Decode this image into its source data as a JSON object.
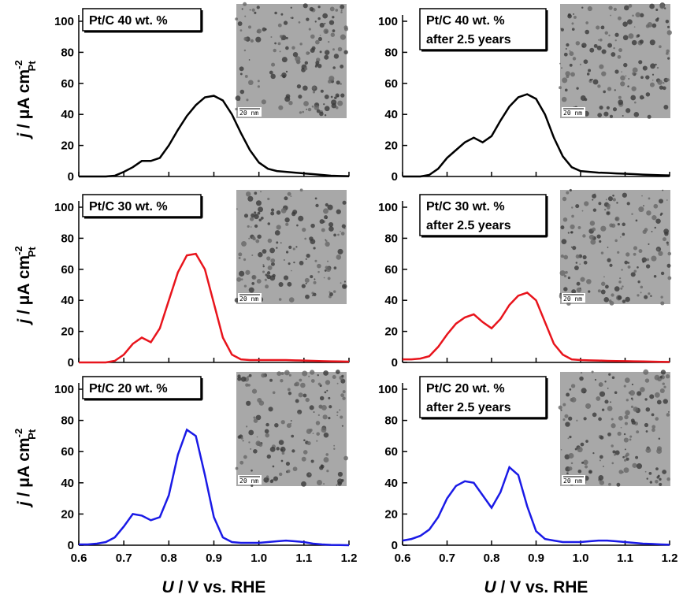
{
  "chart_data": [
    {
      "type": "line",
      "title": [
        "Pt/C 40 wt. %"
      ],
      "inset_scale": "20 nm",
      "ylabel": {
        "symbol": "j",
        "unit": " / μA cm",
        "sup": "-2",
        "sub": "Pt"
      },
      "x": [
        0.6,
        0.62,
        0.64,
        0.66,
        0.68,
        0.7,
        0.72,
        0.74,
        0.76,
        0.78,
        0.8,
        0.82,
        0.84,
        0.86,
        0.88,
        0.9,
        0.92,
        0.94,
        0.96,
        0.98,
        1.0,
        1.02,
        1.04,
        1.06,
        1.08,
        1.1,
        1.12,
        1.14,
        1.16,
        1.18,
        1.2
      ],
      "series": [
        {
          "color": "#000000",
          "values": [
            0,
            0,
            0,
            0,
            0.5,
            3,
            6,
            10,
            10,
            12,
            20,
            30,
            39,
            46,
            51,
            52,
            49,
            40,
            28,
            17,
            9,
            5,
            3.5,
            3,
            2.5,
            2,
            1.5,
            1,
            0.5,
            0.3,
            0.2
          ]
        }
      ],
      "xlim": [
        0.6,
        1.2
      ],
      "xticks": [
        0.6,
        0.7,
        0.8,
        0.9,
        {
          "value": 1,
          "label": "1.0"
        },
        1.1,
        1.2
      ],
      "show_xtick_labels": false,
      "ylim": [
        0,
        100
      ],
      "yticks": [
        0,
        20,
        40,
        60,
        80,
        100
      ]
    },
    {
      "type": "line",
      "title": [
        "Pt/C 40 wt. %",
        "after 2.5 years"
      ],
      "inset_scale": "20 nm",
      "x": [
        0.6,
        0.62,
        0.64,
        0.66,
        0.68,
        0.7,
        0.72,
        0.74,
        0.76,
        0.78,
        0.8,
        0.82,
        0.84,
        0.86,
        0.88,
        0.9,
        0.92,
        0.94,
        0.96,
        0.98,
        1.0,
        1.02,
        1.04,
        1.06,
        1.08,
        1.1,
        1.12,
        1.14,
        1.16,
        1.18,
        1.2
      ],
      "series": [
        {
          "color": "#000000",
          "values": [
            0,
            0,
            0,
            1,
            5,
            12,
            17,
            22,
            25,
            22,
            26,
            36,
            45,
            51,
            53,
            50,
            40,
            25,
            13,
            6,
            3.5,
            3,
            2.5,
            2.3,
            2,
            1.8,
            1.5,
            1.2,
            1,
            0.8,
            0.7
          ]
        }
      ],
      "xlim": [
        0.6,
        1.2
      ],
      "xticks": [
        0.6,
        0.7,
        0.8,
        0.9,
        {
          "value": 1,
          "label": "1.0"
        },
        1.1,
        1.2
      ],
      "show_xtick_labels": false,
      "ylim": [
        0,
        100
      ],
      "yticks": [
        0,
        20,
        40,
        60,
        80,
        100
      ]
    },
    {
      "type": "line",
      "title": [
        "Pt/C 30 wt. %"
      ],
      "inset_scale": "20 nm",
      "ylabel": {
        "symbol": "j",
        "unit": " / μA cm",
        "sup": "-2",
        "sub": "Pt"
      },
      "x": [
        0.6,
        0.62,
        0.64,
        0.66,
        0.68,
        0.7,
        0.72,
        0.74,
        0.76,
        0.78,
        0.8,
        0.82,
        0.84,
        0.86,
        0.88,
        0.9,
        0.92,
        0.94,
        0.96,
        0.98,
        1.0,
        1.02,
        1.04,
        1.06,
        1.08,
        1.1,
        1.12,
        1.14,
        1.16,
        1.18,
        1.2
      ],
      "series": [
        {
          "color": "#e8141c",
          "values": [
            0,
            0,
            0,
            0,
            1,
            5,
            12,
            16,
            13,
            22,
            40,
            58,
            69,
            70,
            60,
            38,
            16,
            5,
            2,
            1.5,
            1.5,
            1.5,
            1.5,
            1.5,
            1.3,
            1.2,
            1,
            0.8,
            0.7,
            0.6,
            0.5
          ]
        }
      ],
      "xlim": [
        0.6,
        1.2
      ],
      "xticks": [
        0.6,
        0.7,
        0.8,
        0.9,
        {
          "value": 1,
          "label": "1.0"
        },
        1.1,
        1.2
      ],
      "show_xtick_labels": false,
      "ylim": [
        0,
        100
      ],
      "yticks": [
        0,
        20,
        40,
        60,
        80,
        100
      ]
    },
    {
      "type": "line",
      "title": [
        "Pt/C 30 wt. %",
        "after 2.5 years"
      ],
      "inset_scale": "20 nm",
      "x": [
        0.6,
        0.62,
        0.64,
        0.66,
        0.68,
        0.7,
        0.72,
        0.74,
        0.76,
        0.78,
        0.8,
        0.82,
        0.84,
        0.86,
        0.88,
        0.9,
        0.92,
        0.94,
        0.96,
        0.98,
        1.0,
        1.02,
        1.04,
        1.06,
        1.08,
        1.1,
        1.12,
        1.14,
        1.16,
        1.18,
        1.2
      ],
      "series": [
        {
          "color": "#e8141c",
          "values": [
            2,
            2,
            2.5,
            4,
            10,
            18,
            25,
            29,
            31,
            26,
            22,
            28,
            37,
            43,
            45,
            40,
            26,
            12,
            5,
            2,
            1.5,
            1.3,
            1.2,
            1,
            0.9,
            0.8,
            0.7,
            0.6,
            0.5,
            0.4,
            0.3
          ]
        }
      ],
      "xlim": [
        0.6,
        1.2
      ],
      "xticks": [
        0.6,
        0.7,
        0.8,
        0.9,
        {
          "value": 1,
          "label": "1.0"
        },
        1.1,
        1.2
      ],
      "show_xtick_labels": false,
      "ylim": [
        0,
        100
      ],
      "yticks": [
        0,
        20,
        40,
        60,
        80,
        100
      ]
    },
    {
      "type": "line",
      "title": [
        "Pt/C 20 wt. %"
      ],
      "inset_scale": "20 nm",
      "ylabel": {
        "symbol": "j",
        "unit": " / μA cm",
        "sup": "-2",
        "sub": "Pt"
      },
      "xlabel": {
        "symbol": "U",
        "unit": " / V vs. RHE"
      },
      "x": [
        0.6,
        0.62,
        0.64,
        0.66,
        0.68,
        0.7,
        0.72,
        0.74,
        0.76,
        0.78,
        0.8,
        0.82,
        0.84,
        0.86,
        0.88,
        0.9,
        0.92,
        0.94,
        0.96,
        0.98,
        1.0,
        1.02,
        1.04,
        1.06,
        1.08,
        1.1,
        1.12,
        1.14,
        1.16,
        1.18,
        1.2
      ],
      "series": [
        {
          "color": "#1a1ae6",
          "values": [
            0.5,
            0.5,
            1,
            2,
            5,
            12,
            20,
            19,
            16,
            18,
            32,
            58,
            74,
            70,
            45,
            18,
            5,
            2,
            1.5,
            1.5,
            1.5,
            2,
            2.5,
            3,
            2.5,
            2,
            1,
            0.5,
            0.2,
            0.1,
            0
          ]
        }
      ],
      "xlim": [
        0.6,
        1.2
      ],
      "xticks": [
        0.6,
        0.7,
        0.8,
        0.9,
        {
          "value": 1,
          "label": "1.0"
        },
        1.1,
        1.2
      ],
      "show_xtick_labels": true,
      "ylim": [
        0,
        100
      ],
      "yticks": [
        0,
        20,
        40,
        60,
        80,
        100
      ]
    },
    {
      "type": "line",
      "title": [
        "Pt/C 20 wt. %",
        "after 2.5 years"
      ],
      "inset_scale": "20 nm",
      "xlabel": {
        "symbol": "U",
        "unit": " / V vs. RHE"
      },
      "x": [
        0.6,
        0.62,
        0.64,
        0.66,
        0.68,
        0.7,
        0.72,
        0.74,
        0.76,
        0.78,
        0.8,
        0.82,
        0.84,
        0.86,
        0.88,
        0.9,
        0.92,
        0.94,
        0.96,
        0.98,
        1.0,
        1.02,
        1.04,
        1.06,
        1.08,
        1.1,
        1.12,
        1.14,
        1.16,
        1.18,
        1.2
      ],
      "series": [
        {
          "color": "#1a1ae6",
          "values": [
            3,
            4,
            6,
            10,
            18,
            30,
            38,
            41,
            40,
            32,
            24,
            34,
            50,
            45,
            25,
            9,
            4,
            3,
            2,
            2,
            2,
            2.5,
            3,
            3,
            2.5,
            2,
            1.5,
            1,
            0.8,
            0.5,
            0.3
          ]
        }
      ],
      "xlim": [
        0.6,
        1.2
      ],
      "xticks": [
        0.6,
        0.7,
        0.8,
        0.9,
        {
          "value": 1,
          "label": "1.0"
        },
        1.1,
        1.2
      ],
      "show_xtick_labels": true,
      "ylim": [
        0,
        100
      ],
      "yticks": [
        0,
        20,
        40,
        60,
        80,
        100
      ]
    }
  ]
}
